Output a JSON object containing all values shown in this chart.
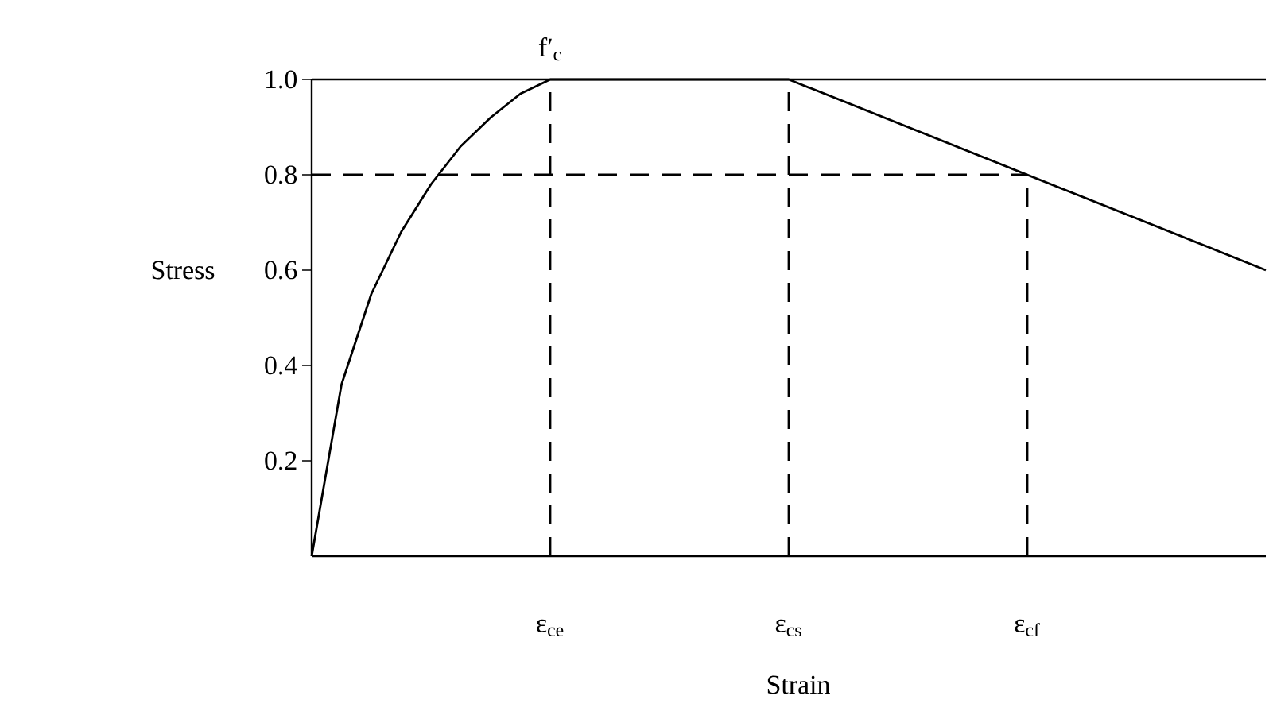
{
  "chart_data": {
    "type": "line",
    "xlabel": "Strain",
    "ylabel": "Stress",
    "ylim": [
      0,
      1
    ],
    "yticks": [
      0.2,
      0.4,
      0.6,
      0.8,
      {
        "value": 1,
        "label": "1.0"
      }
    ],
    "categories": [
      null,
      null,
      null,
      null,
      null,
      null,
      null,
      null,
      "ε$_{ce}$",
      null,
      null,
      null,
      null,
      null,
      null,
      null,
      "ε$_{cs}$",
      null,
      null,
      null,
      null,
      null,
      null,
      null,
      "ε$_{cf}$",
      null,
      null,
      null,
      null,
      null,
      null,
      null,
      null
    ],
    "series": [
      {
        "color": "#000000",
        "line_style": "solid",
        "values": [
          0,
          0.36,
          0.55,
          0.68,
          0.78,
          0.86,
          0.92,
          0.97,
          1.0,
          1.0,
          1.0,
          1.0,
          1.0,
          1.0,
          1.0,
          1.0,
          1.0,
          0.975,
          0.95,
          0.925,
          0.9,
          0.875,
          0.85,
          0.825,
          0.8,
          0.775,
          0.75,
          0.725,
          0.7,
          0.675,
          0.65,
          0.625,
          0.6
        ]
      },
      {
        "color": "#000000",
        "line_style": "dashed",
        "values": [
          0.8,
          0.8,
          0.8,
          0.8,
          0.8,
          0.8,
          0.8,
          0.8,
          0.8,
          0.8,
          0.8,
          0.8,
          0.8,
          0.8,
          0.8,
          0.8,
          0.8,
          0.8,
          0.8,
          0.8,
          0.8,
          0.8,
          0.8,
          0.8,
          0.8,
          null,
          null,
          null,
          null,
          null,
          null,
          null,
          null
        ]
      }
    ],
    "ref_lines": [
      {
        "axis": "x",
        "value": "ε$_{ce}$",
        "line_style": "dashed"
      },
      {
        "axis": "x",
        "value": "ε$_{cs}$",
        "line_style": "dashed"
      },
      {
        "axis": "x",
        "value": "ε$_{cf}$",
        "line_style": "dashed"
      }
    ],
    "annotations": [
      {
        "text": "f′$_{c}$",
        "x": "ε$_{ce}$",
        "y": 1
      }
    ]
  }
}
